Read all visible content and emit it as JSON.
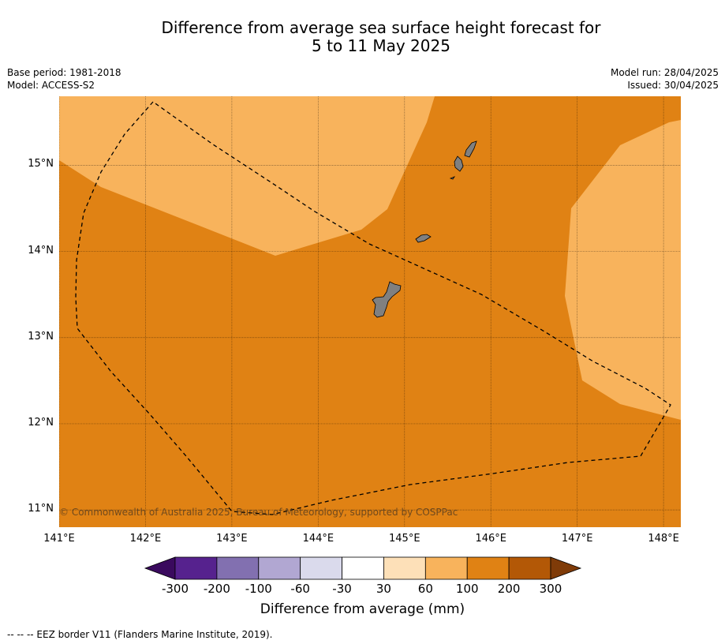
{
  "title": {
    "line1": "Difference from average sea surface height forecast for",
    "line2": "5 to 11 May 2025"
  },
  "meta": {
    "base_period": "Base period: 1981-2018",
    "model": "Model: ACCESS-S2",
    "model_run": "Model run: 28/04/2025",
    "issued": "Issued: 30/04/2025"
  },
  "map": {
    "lon_range": [
      141.0,
      148.2
    ],
    "lat_range": [
      10.8,
      15.8
    ],
    "lon_ticks": [
      "141°E",
      "142°E",
      "143°E",
      "144°E",
      "145°E",
      "146°E",
      "147°E",
      "148°E"
    ],
    "lat_ticks": [
      "15°N",
      "14°N",
      "13°N",
      "12°N",
      "11°N"
    ],
    "background_category": "100 to 200",
    "lighter_region_category": "60 to 100",
    "copyright": "© Commonwealth of Australia 2025, Bureau of Meteorology, supported by COSPPac"
  },
  "colorbar": {
    "labels": [
      "-300",
      "-200",
      "-100",
      "-60",
      "-30",
      "30",
      "60",
      "100",
      "200",
      "300"
    ],
    "colors": [
      "#3a0a5e",
      "#56228e",
      "#8270b0",
      "#b1a7d2",
      "#dadaec",
      "#ffffff",
      "#fde0b8",
      "#f8b35c",
      "#e08214",
      "#b35806",
      "#7f3b08"
    ],
    "title": "Difference from average (mm)"
  },
  "footnote": "--  --  -- EEZ border V11 (Flanders Marine Institute, 2019)."
}
